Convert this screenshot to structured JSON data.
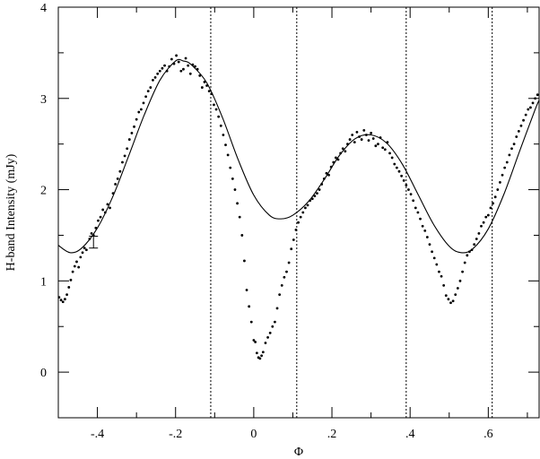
{
  "chart_data": {
    "type": "scatter",
    "title": "",
    "xlabel": "Φ",
    "ylabel": "H-band Intensity (mJy)",
    "xlim": [
      -0.5,
      0.73
    ],
    "ylim": [
      -0.5,
      4
    ],
    "x_ticks": [
      {
        "value": -0.4,
        "label": "-.4"
      },
      {
        "value": -0.2,
        "label": "-.2"
      },
      {
        "value": 0,
        "label": "0"
      },
      {
        "value": 0.2,
        "label": ".2"
      },
      {
        "value": 0.4,
        "label": ".4"
      },
      {
        "value": 0.6,
        "label": ".6"
      }
    ],
    "y_ticks": [
      {
        "value": 0,
        "label": "0"
      },
      {
        "value": 1,
        "label": "1"
      },
      {
        "value": 2,
        "label": "2"
      },
      {
        "value": 3,
        "label": "3"
      },
      {
        "value": 4,
        "label": "4"
      }
    ],
    "vertical_reference_lines": [
      -0.11,
      0.11,
      0.39,
      0.61
    ],
    "error_bar": {
      "x": -0.41,
      "y": 1.42,
      "low": 1.36,
      "high": 1.49
    },
    "model_curve": [
      [
        -0.5,
        1.39
      ],
      [
        -0.47,
        1.31
      ],
      [
        -0.44,
        1.36
      ],
      [
        -0.4,
        1.58
      ],
      [
        -0.36,
        1.93
      ],
      [
        -0.32,
        2.37
      ],
      [
        -0.28,
        2.82
      ],
      [
        -0.24,
        3.2
      ],
      [
        -0.2,
        3.41
      ],
      [
        -0.18,
        3.41
      ],
      [
        -0.16,
        3.37
      ],
      [
        -0.12,
        3.17
      ],
      [
        -0.08,
        2.79
      ],
      [
        -0.04,
        2.33
      ],
      [
        0,
        1.94
      ],
      [
        0.04,
        1.72
      ],
      [
        0.07,
        1.68
      ],
      [
        0.1,
        1.72
      ],
      [
        0.14,
        1.87
      ],
      [
        0.18,
        2.11
      ],
      [
        0.22,
        2.38
      ],
      [
        0.26,
        2.56
      ],
      [
        0.3,
        2.6
      ],
      [
        0.34,
        2.51
      ],
      [
        0.38,
        2.28
      ],
      [
        0.42,
        1.95
      ],
      [
        0.46,
        1.62
      ],
      [
        0.5,
        1.38
      ],
      [
        0.53,
        1.31
      ],
      [
        0.56,
        1.35
      ],
      [
        0.6,
        1.57
      ],
      [
        0.64,
        1.95
      ],
      [
        0.68,
        2.42
      ],
      [
        0.72,
        2.88
      ],
      [
        0.73,
        2.98
      ]
    ],
    "points": [
      [
        -0.498,
        0.82
      ],
      [
        -0.493,
        0.79
      ],
      [
        -0.488,
        0.77
      ],
      [
        -0.483,
        0.8
      ],
      [
        -0.478,
        0.85
      ],
      [
        -0.473,
        0.93
      ],
      [
        -0.468,
        1.01
      ],
      [
        -0.463,
        1.1
      ],
      [
        -0.458,
        1.16
      ],
      [
        -0.453,
        1.21
      ],
      [
        -0.448,
        1.15
      ],
      [
        -0.443,
        1.26
      ],
      [
        -0.438,
        1.31
      ],
      [
        -0.433,
        1.36
      ],
      [
        -0.428,
        1.34
      ],
      [
        -0.42,
        1.46
      ],
      [
        -0.415,
        1.52
      ],
      [
        -0.41,
        1.5
      ],
      [
        -0.404,
        1.58
      ],
      [
        -0.398,
        1.66
      ],
      [
        -0.392,
        1.7
      ],
      [
        -0.386,
        1.78
      ],
      [
        -0.38,
        1.75
      ],
      [
        -0.374,
        1.84
      ],
      [
        -0.368,
        1.8
      ],
      [
        -0.36,
        1.96
      ],
      [
        -0.354,
        2.06
      ],
      [
        -0.348,
        2.12
      ],
      [
        -0.342,
        2.2
      ],
      [
        -0.336,
        2.3
      ],
      [
        -0.33,
        2.37
      ],
      [
        -0.324,
        2.45
      ],
      [
        -0.318,
        2.55
      ],
      [
        -0.312,
        2.62
      ],
      [
        -0.306,
        2.69
      ],
      [
        -0.3,
        2.77
      ],
      [
        -0.294,
        2.85
      ],
      [
        -0.288,
        2.88
      ],
      [
        -0.282,
        2.95
      ],
      [
        -0.276,
        3.02
      ],
      [
        -0.27,
        3.08
      ],
      [
        -0.264,
        3.12
      ],
      [
        -0.258,
        3.2
      ],
      [
        -0.252,
        3.23
      ],
      [
        -0.246,
        3.27
      ],
      [
        -0.24,
        3.3
      ],
      [
        -0.234,
        3.33
      ],
      [
        -0.228,
        3.36
      ],
      [
        -0.222,
        3.3
      ],
      [
        -0.216,
        3.35
      ],
      [
        -0.21,
        3.43
      ],
      [
        -0.204,
        3.38
      ],
      [
        -0.198,
        3.47
      ],
      [
        -0.192,
        3.4
      ],
      [
        -0.186,
        3.3
      ],
      [
        -0.18,
        3.32
      ],
      [
        -0.174,
        3.44
      ],
      [
        -0.168,
        3.36
      ],
      [
        -0.162,
        3.27
      ],
      [
        -0.156,
        3.37
      ],
      [
        -0.15,
        3.35
      ],
      [
        -0.144,
        3.32
      ],
      [
        -0.138,
        3.25
      ],
      [
        -0.132,
        3.12
      ],
      [
        -0.126,
        3.18
      ],
      [
        -0.12,
        3.14
      ],
      [
        -0.114,
        3.08
      ],
      [
        -0.108,
        3.05
      ],
      [
        -0.102,
        2.93
      ],
      [
        -0.096,
        2.88
      ],
      [
        -0.09,
        2.8
      ],
      [
        -0.084,
        2.7
      ],
      [
        -0.078,
        2.6
      ],
      [
        -0.072,
        2.49
      ],
      [
        -0.066,
        2.38
      ],
      [
        -0.06,
        2.24
      ],
      [
        -0.054,
        2.12
      ],
      [
        -0.048,
        2.0
      ],
      [
        -0.042,
        1.85
      ],
      [
        -0.036,
        1.7
      ],
      [
        -0.03,
        1.5
      ],
      [
        -0.024,
        1.22
      ],
      [
        -0.018,
        0.9
      ],
      [
        -0.012,
        0.72
      ],
      [
        -0.006,
        0.55
      ],
      [
        0.0,
        0.35
      ],
      [
        0.004,
        0.33
      ],
      [
        0.008,
        0.21
      ],
      [
        0.012,
        0.16
      ],
      [
        0.016,
        0.15
      ],
      [
        0.02,
        0.18
      ],
      [
        0.024,
        0.22
      ],
      [
        0.03,
        0.32
      ],
      [
        0.036,
        0.38
      ],
      [
        0.042,
        0.43
      ],
      [
        0.048,
        0.5
      ],
      [
        0.054,
        0.55
      ],
      [
        0.06,
        0.7
      ],
      [
        0.066,
        0.85
      ],
      [
        0.072,
        0.95
      ],
      [
        0.078,
        1.04
      ],
      [
        0.084,
        1.1
      ],
      [
        0.09,
        1.2
      ],
      [
        0.096,
        1.35
      ],
      [
        0.102,
        1.45
      ],
      [
        0.108,
        1.56
      ],
      [
        0.114,
        1.64
      ],
      [
        0.12,
        1.7
      ],
      [
        0.126,
        1.75
      ],
      [
        0.132,
        1.8
      ],
      [
        0.138,
        1.83
      ],
      [
        0.144,
        1.88
      ],
      [
        0.15,
        1.9
      ],
      [
        0.156,
        1.93
      ],
      [
        0.162,
        1.96
      ],
      [
        0.168,
        2.0
      ],
      [
        0.174,
        2.06
      ],
      [
        0.18,
        2.12
      ],
      [
        0.186,
        2.18
      ],
      [
        0.192,
        2.16
      ],
      [
        0.198,
        2.25
      ],
      [
        0.204,
        2.3
      ],
      [
        0.21,
        2.35
      ],
      [
        0.216,
        2.33
      ],
      [
        0.222,
        2.4
      ],
      [
        0.228,
        2.45
      ],
      [
        0.234,
        2.42
      ],
      [
        0.24,
        2.5
      ],
      [
        0.246,
        2.55
      ],
      [
        0.252,
        2.6
      ],
      [
        0.258,
        2.52
      ],
      [
        0.264,
        2.63
      ],
      [
        0.27,
        2.58
      ],
      [
        0.276,
        2.55
      ],
      [
        0.282,
        2.65
      ],
      [
        0.288,
        2.6
      ],
      [
        0.294,
        2.54
      ],
      [
        0.3,
        2.62
      ],
      [
        0.306,
        2.56
      ],
      [
        0.312,
        2.48
      ],
      [
        0.318,
        2.5
      ],
      [
        0.324,
        2.57
      ],
      [
        0.33,
        2.46
      ],
      [
        0.336,
        2.44
      ],
      [
        0.342,
        2.52
      ],
      [
        0.348,
        2.4
      ],
      [
        0.354,
        2.35
      ],
      [
        0.36,
        2.28
      ],
      [
        0.366,
        2.24
      ],
      [
        0.372,
        2.2
      ],
      [
        0.378,
        2.15
      ],
      [
        0.384,
        2.1
      ],
      [
        0.39,
        2.05
      ],
      [
        0.396,
        2.0
      ],
      [
        0.402,
        1.95
      ],
      [
        0.408,
        1.88
      ],
      [
        0.414,
        1.8
      ],
      [
        0.42,
        1.75
      ],
      [
        0.426,
        1.68
      ],
      [
        0.432,
        1.6
      ],
      [
        0.438,
        1.55
      ],
      [
        0.444,
        1.48
      ],
      [
        0.45,
        1.4
      ],
      [
        0.456,
        1.32
      ],
      [
        0.462,
        1.25
      ],
      [
        0.468,
        1.18
      ],
      [
        0.474,
        1.1
      ],
      [
        0.48,
        1.05
      ],
      [
        0.486,
        0.95
      ],
      [
        0.492,
        0.84
      ],
      [
        0.498,
        0.8
      ],
      [
        0.504,
        0.76
      ],
      [
        0.51,
        0.78
      ],
      [
        0.516,
        0.85
      ],
      [
        0.522,
        0.92
      ],
      [
        0.528,
        1.0
      ],
      [
        0.534,
        1.1
      ],
      [
        0.54,
        1.2
      ],
      [
        0.546,
        1.28
      ],
      [
        0.552,
        1.32
      ],
      [
        0.558,
        1.34
      ],
      [
        0.564,
        1.4
      ],
      [
        0.57,
        1.46
      ],
      [
        0.576,
        1.52
      ],
      [
        0.582,
        1.6
      ],
      [
        0.588,
        1.64
      ],
      [
        0.594,
        1.7
      ],
      [
        0.6,
        1.72
      ],
      [
        0.606,
        1.8
      ],
      [
        0.612,
        1.85
      ],
      [
        0.618,
        1.92
      ],
      [
        0.624,
        2.0
      ],
      [
        0.63,
        2.08
      ],
      [
        0.636,
        2.16
      ],
      [
        0.642,
        2.24
      ],
      [
        0.648,
        2.3
      ],
      [
        0.654,
        2.38
      ],
      [
        0.66,
        2.45
      ],
      [
        0.666,
        2.5
      ],
      [
        0.672,
        2.58
      ],
      [
        0.678,
        2.64
      ],
      [
        0.684,
        2.7
      ],
      [
        0.69,
        2.76
      ],
      [
        0.696,
        2.82
      ],
      [
        0.702,
        2.88
      ],
      [
        0.708,
        2.9
      ],
      [
        0.714,
        2.95
      ],
      [
        0.72,
        3.0
      ],
      [
        0.726,
        3.04
      ]
    ]
  }
}
